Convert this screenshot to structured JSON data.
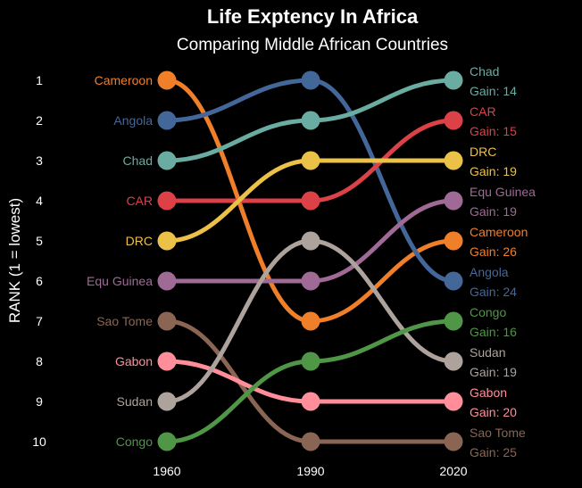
{
  "chart_data": {
    "type": "line",
    "title": "Life Exptency In Africa",
    "subtitle": "Comparing Middle African Countries",
    "xlabel": "",
    "ylabel": "RANK (1 = lowest)",
    "x": [
      "1960",
      "1990",
      "2020"
    ],
    "y_ticks": [
      "1",
      "2",
      "3",
      "4",
      "5",
      "6",
      "7",
      "8",
      "9",
      "10"
    ],
    "ylim": [
      1,
      10
    ],
    "y_reversed": true,
    "grid": false,
    "gain_prefix": "Gain: ",
    "series": [
      {
        "name": "Cameroon",
        "ranks": [
          1,
          7,
          5
        ],
        "gain": 26,
        "color": "#f07f2a"
      },
      {
        "name": "Angola",
        "ranks": [
          2,
          1,
          6
        ],
        "gain": 24,
        "color": "#44679a"
      },
      {
        "name": "Chad",
        "ranks": [
          3,
          2,
          1
        ],
        "gain": 14,
        "color": "#6aaca1"
      },
      {
        "name": "CAR",
        "ranks": [
          4,
          4,
          2
        ],
        "gain": 15,
        "color": "#dc4148"
      },
      {
        "name": "DRC",
        "ranks": [
          5,
          3,
          3
        ],
        "gain": 19,
        "color": "#ecc147"
      },
      {
        "name": "Equ Guinea",
        "ranks": [
          6,
          6,
          4
        ],
        "gain": 19,
        "color": "#a06a96"
      },
      {
        "name": "Sao Tome",
        "ranks": [
          7,
          10,
          10
        ],
        "gain": 25,
        "color": "#8a6553"
      },
      {
        "name": "Gabon",
        "ranks": [
          8,
          9,
          9
        ],
        "gain": 20,
        "color": "#ff8e9a"
      },
      {
        "name": "Sudan",
        "ranks": [
          9,
          5,
          8
        ],
        "gain": 19,
        "color": "#aea39c"
      },
      {
        "name": "Congo",
        "ranks": [
          10,
          8,
          7
        ],
        "gain": 16,
        "color": "#4f9646"
      }
    ]
  }
}
